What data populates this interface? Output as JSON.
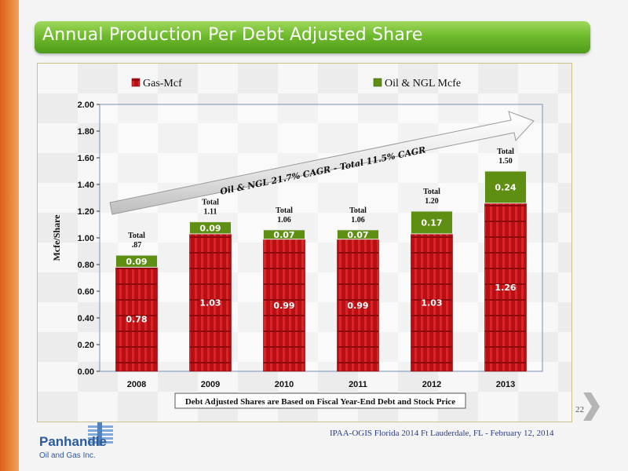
{
  "header": {
    "title": "Annual Production Per Debt Adjusted Share"
  },
  "footer": {
    "event": "IPAA-OGIS Florida 2014 Ft Lauderdale, FL - February 12, 2014",
    "page": "22"
  },
  "logo": {
    "name": "Panhandle",
    "subtitle": "Oil and Gas Inc."
  },
  "colors": {
    "gas": "#c8141a",
    "oil": "#5e8f13",
    "title_bar": "#6fbb2d",
    "accent": "#e88436"
  },
  "icons": {
    "next": "chevron-right-icon",
    "logo": "panhandle-logo-icon"
  },
  "chart_data": {
    "type": "bar",
    "stacked": true,
    "title": "",
    "xlabel": "",
    "ylabel": "Mcfe/Share",
    "ylim": [
      0,
      2.0
    ],
    "yticks": [
      "0.00",
      "0.20",
      "0.40",
      "0.60",
      "0.80",
      "1.00",
      "1.20",
      "1.40",
      "1.60",
      "1.80",
      "2.00"
    ],
    "categories": [
      "2008",
      "2009",
      "2010",
      "2011",
      "2012",
      "2013"
    ],
    "series": [
      {
        "name": "Gas-Mcf",
        "values": [
          0.78,
          1.03,
          0.99,
          0.99,
          1.03,
          1.26
        ],
        "labels": [
          "0.78",
          "1.03",
          "0.99",
          "0.99",
          "1.03",
          "1.26"
        ]
      },
      {
        "name": "Oil & NGL Mcfe",
        "values": [
          0.09,
          0.09,
          0.07,
          0.07,
          0.17,
          0.24
        ],
        "labels": [
          "0.09",
          "0.09",
          "0.07",
          "0.07",
          "0.17",
          "0.24"
        ]
      }
    ],
    "totals": [
      {
        "line1": "Total",
        "line2": ".87"
      },
      {
        "line1": "Total",
        "line2": "1.11"
      },
      {
        "line1": "Total",
        "line2": "1.06"
      },
      {
        "line1": "Total",
        "line2": "1.06"
      },
      {
        "line1": "Total",
        "line2": "1.20"
      },
      {
        "line1": "Total",
        "line2": "1.50"
      }
    ],
    "arrow_annotation": "Oil & NGL 21.7% CAGR - Total 11.5% CAGR",
    "note": "Debt Adjusted Shares are Based on Fiscal Year-End Debt and Stock Price",
    "legend_position": "top"
  }
}
